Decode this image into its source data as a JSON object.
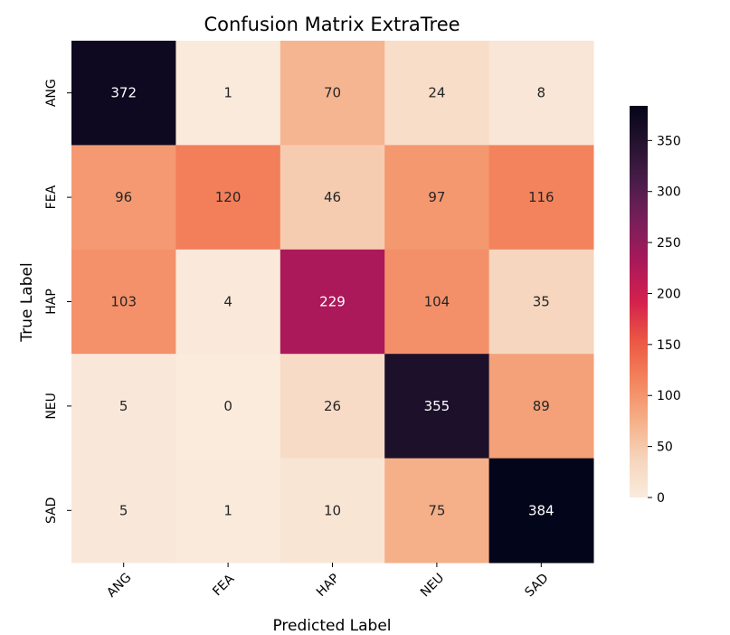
{
  "chart_data": {
    "type": "heatmap",
    "title": "Confusion Matrix ExtraTree",
    "xlabel": "Predicted Label",
    "ylabel": "True Label",
    "x_categories": [
      "ANG",
      "FEA",
      "HAP",
      "NEU",
      "SAD"
    ],
    "y_categories": [
      "ANG",
      "FEA",
      "HAP",
      "NEU",
      "SAD"
    ],
    "values": [
      [
        372,
        1,
        70,
        24,
        8
      ],
      [
        96,
        120,
        46,
        97,
        116
      ],
      [
        103,
        4,
        229,
        104,
        35
      ],
      [
        5,
        0,
        26,
        355,
        89
      ],
      [
        5,
        1,
        10,
        75,
        384
      ]
    ],
    "colormap": "rocket_r",
    "colorbar": {
      "range": [
        0,
        384
      ],
      "ticks": [
        0,
        50,
        100,
        150,
        200,
        250,
        300,
        350
      ]
    },
    "grid": false
  }
}
